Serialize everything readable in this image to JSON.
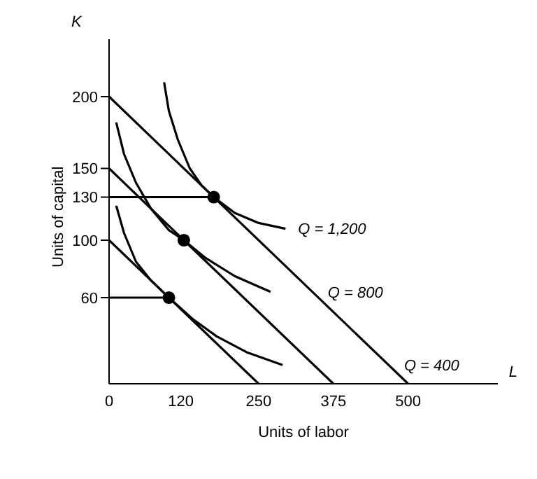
{
  "chart_data": {
    "type": "line",
    "xlabel": "Units of labor",
    "ylabel": "Units of capital",
    "xlim": [
      0,
      650
    ],
    "ylim": [
      0,
      240
    ],
    "xticks": [
      0,
      120,
      250,
      375,
      500
    ],
    "yticks": [
      60,
      100,
      130,
      150,
      200
    ],
    "grid": false,
    "marker": "none",
    "series": [
      {
        "color": "#000000",
        "x": [
          0,
          250
        ],
        "values": [
          100,
          0
        ]
      },
      {
        "color": "#000000",
        "x": [
          0,
          375
        ],
        "values": [
          150,
          0
        ]
      },
      {
        "color": "#000000",
        "x": [
          0,
          500
        ],
        "values": [
          200,
          0
        ]
      },
      {
        "color": "#000000",
        "x": [
          0,
          100
        ],
        "values": [
          60,
          60
        ]
      },
      {
        "color": "#000000",
        "x": [
          0,
          175
        ],
        "values": [
          130,
          130
        ]
      },
      {
        "name": "Q = 400",
        "color": "#000000",
        "x": [
          12,
          25,
          45,
          70,
          100,
          140,
          180,
          230,
          290
        ],
        "values": [
          124,
          105,
          85,
          72,
          60,
          45,
          33,
          22,
          13
        ]
      },
      {
        "name": "Q = 800",
        "color": "#000000",
        "x": [
          12,
          25,
          45,
          70,
          100,
          125,
          160,
          210,
          270
        ],
        "values": [
          182,
          160,
          140,
          122,
          107,
          100,
          88,
          75,
          64
        ]
      },
      {
        "name": "Q = 1,200",
        "color": "#000000",
        "x": [
          92,
          100,
          115,
          135,
          155,
          175,
          210,
          250,
          295
        ],
        "values": [
          210,
          190,
          170,
          150,
          138,
          130,
          119,
          112,
          108
        ]
      },
      {
        "type": "scatter",
        "marker": "circle",
        "color": "#000000",
        "x": [
          100,
          125,
          175
        ],
        "values": [
          60,
          100,
          130
        ]
      }
    ],
    "annotations": [
      "K",
      "L"
    ]
  }
}
